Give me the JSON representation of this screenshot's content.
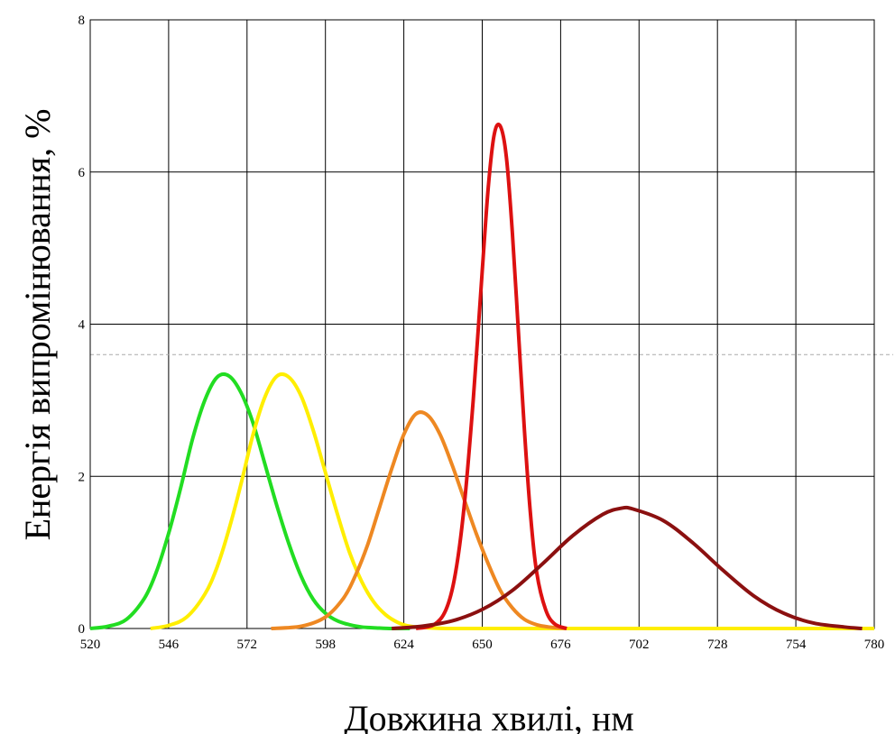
{
  "chart_data": {
    "type": "line",
    "title": "",
    "xlabel": "Довжина хвилі, нм",
    "ylabel": "Енергія випромінювання, %",
    "xlim": [
      520,
      780
    ],
    "ylim": [
      0,
      8
    ],
    "x_ticks": [
      "520",
      "546",
      "572",
      "598",
      "624",
      "650",
      "676",
      "702",
      "728",
      "754",
      "780"
    ],
    "y_ticks": [
      "0",
      "2",
      "4",
      "6",
      "8"
    ],
    "grid": true,
    "reference_line_y": 3.6,
    "series": [
      {
        "color": "#22dd22",
        "x": [
          520,
          526,
          532,
          538,
          542,
          546,
          550,
          554,
          558,
          562,
          566,
          570,
          574,
          578,
          582,
          586,
          590,
          594,
          598,
          602,
          606,
          610,
          614,
          620,
          626
        ],
        "values": [
          0.0,
          0.03,
          0.12,
          0.4,
          0.75,
          1.25,
          1.85,
          2.5,
          3.0,
          3.3,
          3.32,
          3.1,
          2.7,
          2.15,
          1.6,
          1.1,
          0.68,
          0.38,
          0.2,
          0.1,
          0.05,
          0.02,
          0.01,
          0.0,
          0.0
        ]
      },
      {
        "color": "#ffee00",
        "x": [
          540,
          546,
          552,
          558,
          562,
          566,
          570,
          574,
          578,
          582,
          586,
          590,
          594,
          598,
          602,
          606,
          610,
          614,
          618,
          622,
          626,
          632,
          640,
          660,
          700,
          740,
          780
        ],
        "values": [
          0.0,
          0.04,
          0.15,
          0.45,
          0.8,
          1.3,
          1.9,
          2.55,
          3.05,
          3.32,
          3.3,
          3.05,
          2.6,
          2.05,
          1.5,
          1.0,
          0.62,
          0.35,
          0.18,
          0.08,
          0.03,
          0.01,
          0.0,
          0.0,
          0.0,
          0.0,
          0.0
        ]
      },
      {
        "color": "#ee8822",
        "x": [
          580,
          590,
          598,
          604,
          608,
          612,
          616,
          620,
          624,
          628,
          632,
          636,
          640,
          644,
          648,
          652,
          656,
          660,
          664,
          668,
          672,
          678
        ],
        "values": [
          0.0,
          0.03,
          0.15,
          0.4,
          0.7,
          1.1,
          1.6,
          2.1,
          2.55,
          2.82,
          2.8,
          2.55,
          2.15,
          1.7,
          1.25,
          0.85,
          0.5,
          0.27,
          0.12,
          0.05,
          0.02,
          0.0
        ]
      },
      {
        "color": "#dd1111",
        "x": [
          628,
          634,
          638,
          641,
          644,
          647,
          650,
          652,
          654,
          656,
          658,
          660,
          662,
          664,
          666,
          668,
          671,
          674,
          678
        ],
        "values": [
          0.0,
          0.05,
          0.25,
          0.7,
          1.6,
          3.0,
          4.7,
          5.8,
          6.5,
          6.6,
          6.2,
          5.2,
          3.9,
          2.6,
          1.5,
          0.75,
          0.25,
          0.06,
          0.0
        ]
      },
      {
        "color": "#8b1010",
        "x": [
          620,
          630,
          640,
          650,
          660,
          670,
          680,
          690,
          696,
          700,
          710,
          720,
          730,
          740,
          750,
          760,
          770,
          776
        ],
        "values": [
          0.0,
          0.03,
          0.1,
          0.25,
          0.5,
          0.85,
          1.22,
          1.5,
          1.58,
          1.57,
          1.42,
          1.12,
          0.76,
          0.43,
          0.2,
          0.07,
          0.02,
          0.0
        ]
      }
    ]
  }
}
